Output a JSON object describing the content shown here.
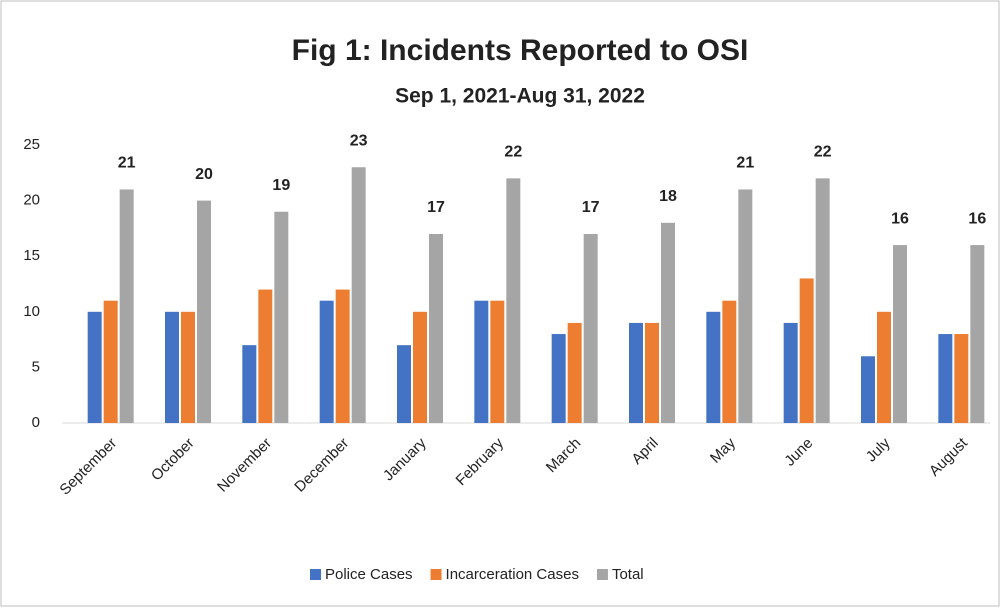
{
  "chart_data": {
    "type": "bar",
    "title": "Fig 1: Incidents Reported to OSI",
    "subtitle": "Sep 1, 2021-Aug 31, 2022",
    "categories": [
      "September",
      "October",
      "November",
      "December",
      "January",
      "February",
      "March",
      "April",
      "May",
      "June",
      "July",
      "August"
    ],
    "series": [
      {
        "name": "Police Cases",
        "color": "#4472c4",
        "values": [
          10,
          10,
          7,
          11,
          7,
          11,
          8,
          9,
          10,
          9,
          6,
          8
        ]
      },
      {
        "name": "Incarceration Cases",
        "color": "#ed7d31",
        "values": [
          11,
          10,
          12,
          12,
          10,
          11,
          9,
          9,
          11,
          13,
          10,
          8
        ]
      },
      {
        "name": "Total",
        "color": "#a5a5a5",
        "values": [
          21,
          20,
          19,
          23,
          17,
          22,
          17,
          18,
          21,
          22,
          16,
          16
        ],
        "data_labels": true
      }
    ],
    "ylim": [
      0,
      25
    ],
    "yticks": [
      0,
      5,
      10,
      15,
      20,
      25
    ],
    "grid": false,
    "legend": "bottom"
  }
}
